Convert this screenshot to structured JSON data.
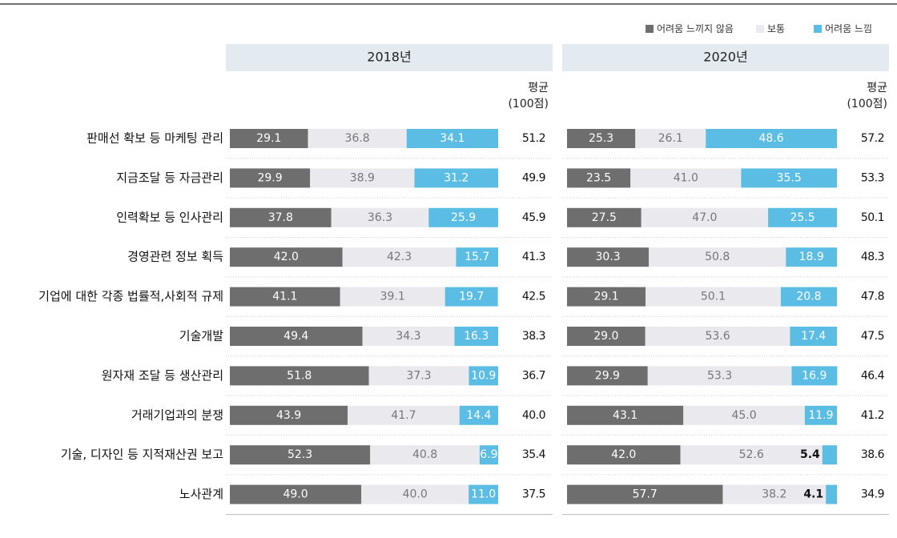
{
  "chart_data": {
    "type": "stacked_bar",
    "xlim": [
      0,
      100
    ],
    "categories": [
      "판매선 확보 등 마케팅 관리",
      "지금조달 등 자금관리",
      "인력확보 등 인사관리",
      "경영관련 정보 획득",
      "기업에 대한 각종 법률적,사회적 규제",
      "기술개발",
      "원자재 조달 등 생산관리",
      "거래기업과의 분쟁",
      "기술, 디자인 등 지적재산권 보고",
      "노사관계"
    ],
    "legend": [
      {
        "name": "어려움 느끼지 않음",
        "color": "#6e6e6e"
      },
      {
        "name": "보통",
        "color": "#e9e9ee"
      },
      {
        "name": "어려움 느낌",
        "color": "#5bbde3"
      }
    ],
    "average_label": [
      "평균",
      "(100점)"
    ],
    "panels": [
      {
        "title": "2018년",
        "series": [
          {
            "values": [
              29.1,
              29.9,
              37.8,
              42.0,
              41.1,
              49.4,
              51.8,
              43.9,
              52.3,
              49.0
            ],
            "value_labels": [
              "29.1",
              "29.9",
              "37.8",
              "42.0",
              "41.1",
              "49.4",
              "51.8",
              "43.9",
              "52.3",
              "49.0"
            ]
          },
          {
            "values": [
              36.8,
              38.9,
              36.3,
              42.3,
              39.1,
              34.3,
              37.3,
              41.7,
              40.8,
              40.0
            ],
            "value_labels": [
              "36.8",
              "38.9",
              "36.3",
              "42.3",
              "39.1",
              "34.3",
              "37.3",
              "41.7",
              "40.8",
              "40.0"
            ]
          },
          {
            "values": [
              34.1,
              31.2,
              25.9,
              15.7,
              19.7,
              16.3,
              10.9,
              14.4,
              6.9,
              11.0
            ],
            "value_labels": [
              "34.1",
              "31.2",
              "25.9",
              "15.7",
              "19.7",
              "16.3",
              "10.9",
              "14.4",
              "6.9",
              "11.0"
            ]
          }
        ],
        "averages": [
          51.2,
          49.9,
          45.9,
          41.3,
          42.5,
          38.3,
          36.7,
          40.0,
          35.4,
          37.5
        ],
        "average_labels": [
          "51.2",
          "49.9",
          "45.9",
          "41.3",
          "42.5",
          "38.3",
          "36.7",
          "40.0",
          "35.4",
          "37.5"
        ]
      },
      {
        "title": "2020년",
        "series": [
          {
            "values": [
              25.3,
              23.5,
              27.5,
              30.3,
              29.1,
              29.0,
              29.9,
              43.1,
              42.0,
              57.7
            ],
            "value_labels": [
              "25.3",
              "23.5",
              "27.5",
              "30.3",
              "29.1",
              "29.0",
              "29.9",
              "43.1",
              "42.0",
              "57.7"
            ]
          },
          {
            "values": [
              26.1,
              41.0,
              47.0,
              50.8,
              50.1,
              53.6,
              53.3,
              45.0,
              52.6,
              38.2
            ],
            "value_labels": [
              "26.1",
              "41.0",
              "47.0",
              "50.8",
              "50.1",
              "53.6",
              "53.3",
              "45.0",
              "52.6",
              "38.2"
            ]
          },
          {
            "values": [
              48.6,
              35.5,
              25.5,
              18.9,
              20.8,
              17.4,
              16.9,
              11.9,
              5.4,
              4.1
            ],
            "value_labels": [
              "48.6",
              "35.5",
              "25.5",
              "18.9",
              "20.8",
              "17.4",
              "16.9",
              "11.9",
              "5.4",
              "4.1"
            ]
          }
        ],
        "averages": [
          57.2,
          53.3,
          50.1,
          48.3,
          47.8,
          47.5,
          46.4,
          41.2,
          38.6,
          34.9
        ],
        "average_labels": [
          "57.2",
          "53.3",
          "50.1",
          "48.3",
          "47.8",
          "47.5",
          "46.4",
          "41.2",
          "38.6",
          "34.9"
        ]
      }
    ]
  }
}
